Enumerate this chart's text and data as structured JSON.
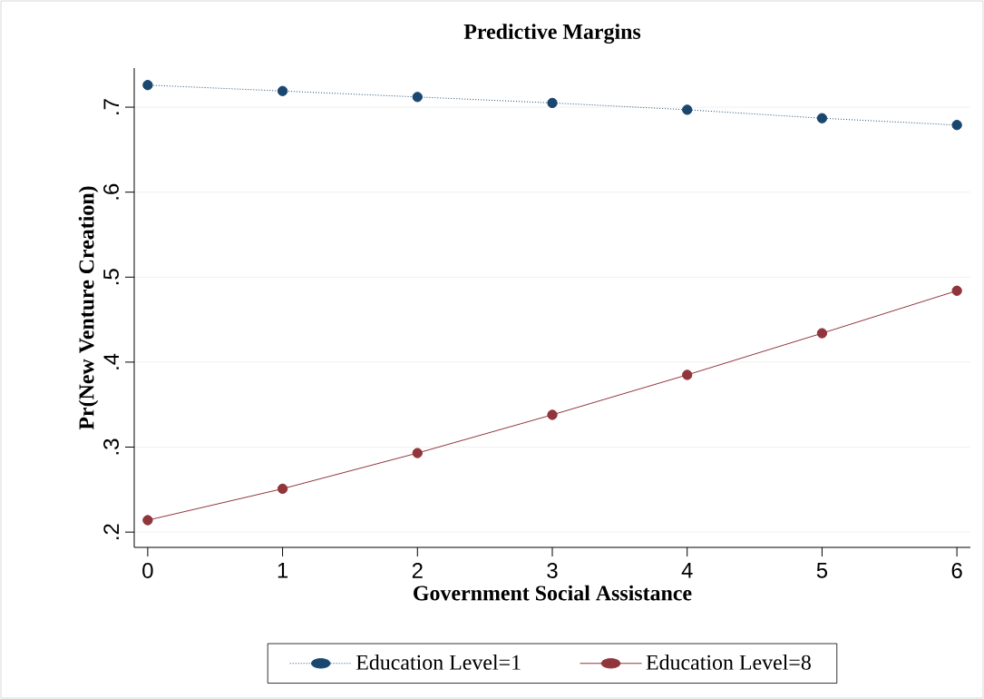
{
  "chart_data": {
    "type": "line",
    "title": "Predictive Margins",
    "xlabel": "Government Social Assistance",
    "ylabel": "Pr(New Venture Creation)",
    "x": [
      0,
      1,
      2,
      3,
      4,
      5,
      6
    ],
    "series": [
      {
        "name": "Education Level=1",
        "color": "#1a476f",
        "line_style": "dotted",
        "values": [
          0.726,
          0.719,
          0.712,
          0.705,
          0.697,
          0.687,
          0.679
        ]
      },
      {
        "name": "Education Level=8",
        "color": "#90353b",
        "line_style": "solid",
        "values": [
          0.214,
          0.251,
          0.293,
          0.338,
          0.385,
          0.434,
          0.484
        ]
      }
    ],
    "xlim": [
      -0.1,
      6.1
    ],
    "ylim": [
      0.182,
      0.746
    ],
    "xticks": [
      0,
      1,
      2,
      3,
      4,
      5,
      6
    ],
    "yticks": [
      {
        "value": 0.2,
        "label": ".2"
      },
      {
        "value": 0.3,
        "label": ".3"
      },
      {
        "value": 0.4,
        "label": ".4"
      },
      {
        "value": 0.5,
        "label": ".5"
      },
      {
        "value": 0.6,
        "label": ".6"
      },
      {
        "value": 0.7,
        "label": ".7"
      }
    ],
    "grid": "y",
    "legend": "bottom",
    "marker": "circle"
  }
}
